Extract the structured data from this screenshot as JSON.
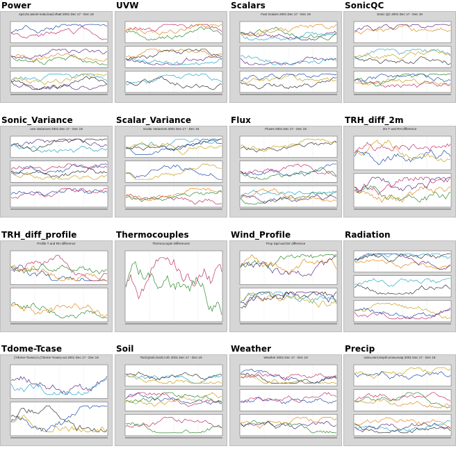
{
  "gallery": {
    "thumbnails": [
      {
        "title": "Power",
        "caption": "spd.2m,twind+solar,load,Vbatt 2001 Dec 17 - Dec 19"
      },
      {
        "title": "UVW",
        "caption": ""
      },
      {
        "title": "Scalars",
        "caption": "Fast Scalars 2001 Dec 17 - Dec 19"
      },
      {
        "title": "SonicQC",
        "caption": "Sonic QC 2001 Dec 17 - Dec 19"
      },
      {
        "title": "Sonic_Variance",
        "caption": "uvw Variances 2001 Dec 17 - Dec 19"
      },
      {
        "title": "Scalar_Variance",
        "caption": "Scalar Variances 2001 Dec 17 - Dec 19"
      },
      {
        "title": "Flux",
        "caption": "Fluxes 2001 Dec 17 - Dec 19"
      },
      {
        "title": "TRH_diff_2m",
        "caption": "2m T and RH difference"
      },
      {
        "title": "TRH_diff_profile",
        "caption": "Profile T and RH difference"
      },
      {
        "title": "Thermocouples",
        "caption": "Thermocouple Differences"
      },
      {
        "title": "Wind_Profile",
        "caption": "Prop Spd and Dir difference"
      },
      {
        "title": "Radiation",
        "caption": ""
      },
      {
        "title": "Tdome-Tcase",
        "caption": "(Tdome-Tcase).in,(Tdome-Tcase).out 2001 Dec 17 - Dec 19"
      },
      {
        "title": "Soil",
        "caption": "Tsoil,Qsoil,Gsoil,Cvfc 2001 Dec 17 - Dec 19"
      },
      {
        "title": "Weather",
        "caption": "Weather 2001 Dec 17 - Dec 19"
      },
      {
        "title": "Precip",
        "caption": "raina,rainr,Depth,snow,evap 2001 Dec 17 - Dec 19"
      }
    ]
  }
}
